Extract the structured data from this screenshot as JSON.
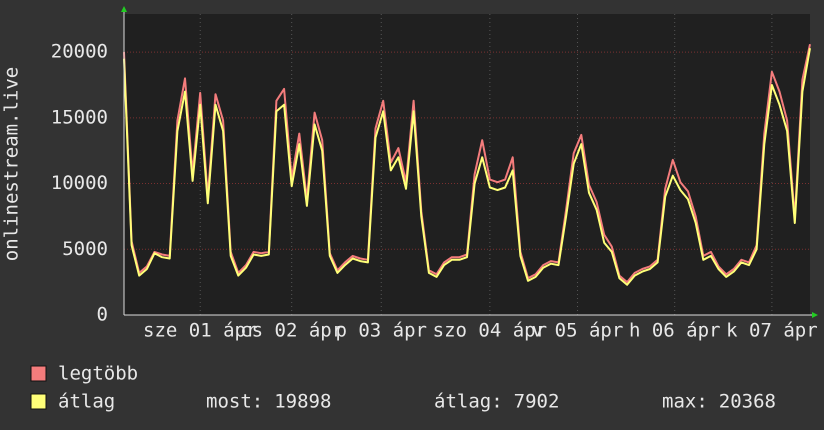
{
  "chart_data": {
    "type": "line",
    "y_label": "onlinestream.live",
    "x": [
      0,
      2,
      4,
      6,
      8,
      10,
      12,
      14,
      16,
      18,
      20,
      22,
      24,
      26,
      28,
      30,
      32,
      34,
      36,
      38,
      40,
      42,
      44,
      46,
      48,
      50,
      52,
      54,
      56,
      58,
      60,
      62,
      64,
      66,
      68,
      70,
      72,
      74,
      76,
      78,
      80,
      82,
      84,
      86,
      88,
      90,
      92,
      94,
      96,
      98,
      100,
      102,
      104,
      106,
      108,
      110,
      112,
      114,
      116,
      118,
      120,
      122,
      124,
      126,
      128,
      130,
      132,
      134,
      136,
      138,
      140,
      142,
      144,
      146,
      148,
      150,
      152,
      154,
      156,
      158,
      160,
      162,
      164,
      166,
      168,
      170,
      172,
      174,
      176,
      178,
      180
    ],
    "series": [
      {
        "name": "legtöbb",
        "color": "#f47c7c",
        "values": [
          20000,
          5600,
          3200,
          3700,
          4800,
          4600,
          4500,
          14800,
          18000,
          10800,
          16900,
          9000,
          16800,
          14800,
          4800,
          3200,
          3800,
          4800,
          4700,
          4800,
          16300,
          17200,
          10400,
          13800,
          8800,
          15400,
          13300,
          4700,
          3400,
          4000,
          4500,
          4300,
          4200,
          14200,
          16300,
          11600,
          12700,
          10100,
          16300,
          7900,
          3400,
          3100,
          4000,
          4400,
          4400,
          4600,
          10700,
          13300,
          10300,
          10100,
          10300,
          12000,
          4800,
          2800,
          3100,
          3800,
          4100,
          4000,
          8000,
          12300,
          13700,
          9900,
          8600,
          6100,
          5200,
          3000,
          2500,
          3200,
          3500,
          3700,
          4200,
          9600,
          11800,
          10100,
          9400,
          7500,
          4500,
          4800,
          3700,
          3100,
          3500,
          4200,
          4000,
          5300,
          13800,
          18500,
          17000,
          14800,
          7400,
          17900,
          20600
        ]
      },
      {
        "name": "átlag",
        "color": "#ffff78",
        "values": [
          19500,
          5300,
          3000,
          3500,
          4700,
          4400,
          4300,
          14000,
          17000,
          10200,
          16000,
          8500,
          16000,
          14000,
          4500,
          3000,
          3600,
          4600,
          4500,
          4600,
          15500,
          16000,
          9800,
          13000,
          8300,
          14500,
          12500,
          4500,
          3200,
          3800,
          4300,
          4100,
          4000,
          13500,
          15500,
          11000,
          12000,
          9600,
          15500,
          7500,
          3200,
          2900,
          3800,
          4200,
          4200,
          4400,
          10000,
          12000,
          9700,
          9500,
          9700,
          11000,
          4500,
          2600,
          2900,
          3600,
          3900,
          3800,
          7500,
          11500,
          13000,
          9300,
          8000,
          5500,
          4800,
          2800,
          2300,
          3000,
          3300,
          3500,
          4000,
          9000,
          10600,
          9500,
          8800,
          7000,
          4200,
          4500,
          3500,
          2900,
          3300,
          4000,
          3800,
          5000,
          13000,
          17500,
          16000,
          14000,
          7000,
          17000,
          20300
        ]
      }
    ],
    "xlim": [
      0,
      180
    ],
    "ylim": [
      0,
      22900
    ],
    "yticks": [
      0,
      5000,
      10000,
      15000,
      20000
    ],
    "xticks": [
      {
        "value": 20,
        "label": "sze 01 ápr"
      },
      {
        "value": 44,
        "label": "cs 02 ápr"
      },
      {
        "value": 67.5,
        "label": "p 03 ápr"
      },
      {
        "value": 96,
        "label": "szo 04 ápr"
      },
      {
        "value": 119,
        "label": "v 05 ápr"
      },
      {
        "value": 144.5,
        "label": "h 06 ápr"
      },
      {
        "value": 170,
        "label": "k 07 ápr"
      }
    ],
    "grid": true,
    "stats": [
      {
        "label": "most:",
        "value": 19898
      },
      {
        "label": "átlag:",
        "value": 7902
      },
      {
        "label": "max:",
        "value": 20368
      }
    ]
  }
}
